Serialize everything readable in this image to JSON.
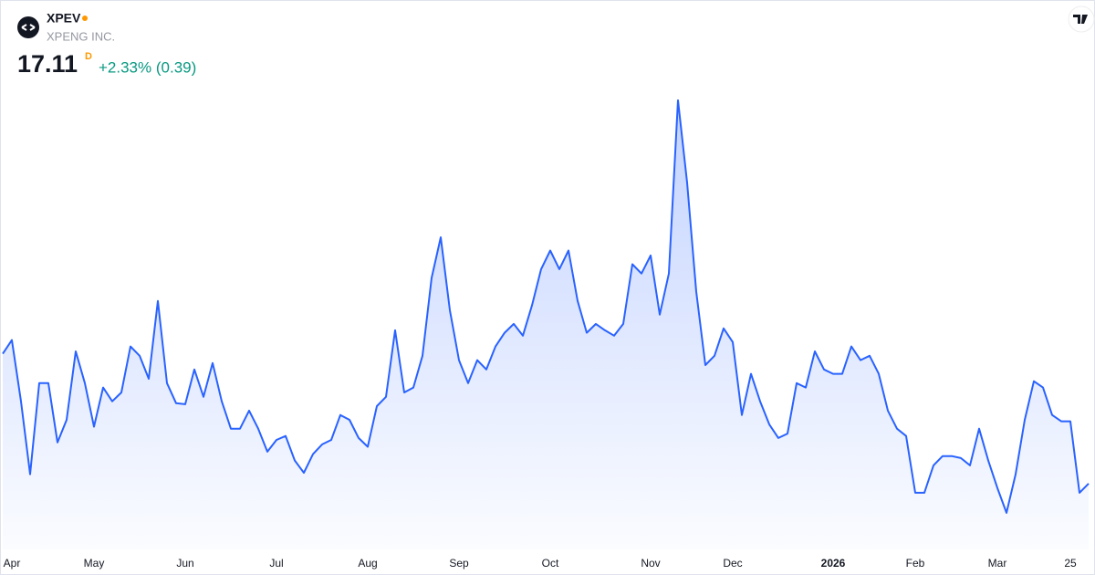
{
  "header": {
    "symbol": "XPEV",
    "company": "XPENG INC.",
    "price": 17.11,
    "interval": "D",
    "change": "+2.33% (0.39)"
  },
  "chart_data": {
    "type": "area",
    "color": "#2962ff",
    "categories": [
      null,
      "Apr",
      null,
      null,
      null,
      null,
      null,
      null,
      null,
      null,
      "May",
      null,
      null,
      null,
      null,
      null,
      null,
      null,
      null,
      null,
      "Jun",
      null,
      null,
      null,
      null,
      null,
      null,
      null,
      null,
      null,
      "Jul",
      null,
      null,
      null,
      null,
      null,
      null,
      null,
      null,
      null,
      "Aug",
      null,
      null,
      null,
      null,
      null,
      null,
      null,
      null,
      null,
      "Sep",
      null,
      null,
      null,
      null,
      null,
      null,
      null,
      null,
      null,
      "Oct",
      null,
      null,
      null,
      null,
      null,
      null,
      null,
      null,
      null,
      null,
      "Nov",
      null,
      null,
      null,
      null,
      null,
      null,
      null,
      null,
      "Dec",
      null,
      null,
      null,
      null,
      null,
      null,
      null,
      null,
      null,
      null,
      "2026",
      null,
      null,
      null,
      null,
      null,
      null,
      null,
      null,
      "Feb",
      null,
      null,
      null,
      null,
      null,
      null,
      null,
      null,
      "Mar",
      null,
      null,
      null,
      null,
      null,
      null,
      null,
      "25",
      null,
      null
    ],
    "values": [
      19.76,
      20.04,
      18.79,
      17.3,
      19.16,
      19.16,
      17.95,
      18.41,
      19.81,
      19.16,
      18.27,
      19.07,
      18.79,
      18.97,
      19.91,
      19.72,
      19.25,
      20.84,
      19.16,
      18.75,
      18.73,
      19.44,
      18.88,
      19.57,
      18.79,
      18.23,
      18.23,
      18.6,
      18.23,
      17.76,
      18.0,
      18.08,
      17.58,
      17.33,
      17.71,
      17.91,
      18.0,
      18.51,
      18.41,
      18.04,
      17.86,
      18.69,
      18.88,
      20.24,
      18.97,
      19.07,
      19.72,
      21.31,
      22.14,
      20.65,
      19.63,
      19.16,
      19.63,
      19.44,
      19.91,
      20.19,
      20.37,
      20.13,
      20.75,
      21.49,
      21.87,
      21.49,
      21.87,
      20.84,
      20.19,
      20.37,
      20.24,
      20.13,
      20.37,
      21.59,
      21.4,
      21.77,
      20.56,
      21.4,
      24.94,
      23.26,
      21.03,
      19.53,
      19.72,
      20.28,
      20.0,
      18.51,
      19.35,
      18.79,
      18.32,
      18.04,
      18.13,
      19.16,
      19.07,
      19.81,
      19.44,
      19.35,
      19.35,
      19.91,
      19.63,
      19.72,
      19.35,
      18.6,
      18.23,
      18.08,
      16.92,
      16.92,
      17.48,
      17.67,
      17.67,
      17.63,
      17.48,
      18.23,
      17.58,
      17.02,
      16.51,
      17.3,
      18.41,
      19.2,
      19.07,
      18.51,
      18.38,
      18.38,
      16.92,
      17.11
    ],
    "ylim": [
      15.8,
      25.87
    ]
  }
}
